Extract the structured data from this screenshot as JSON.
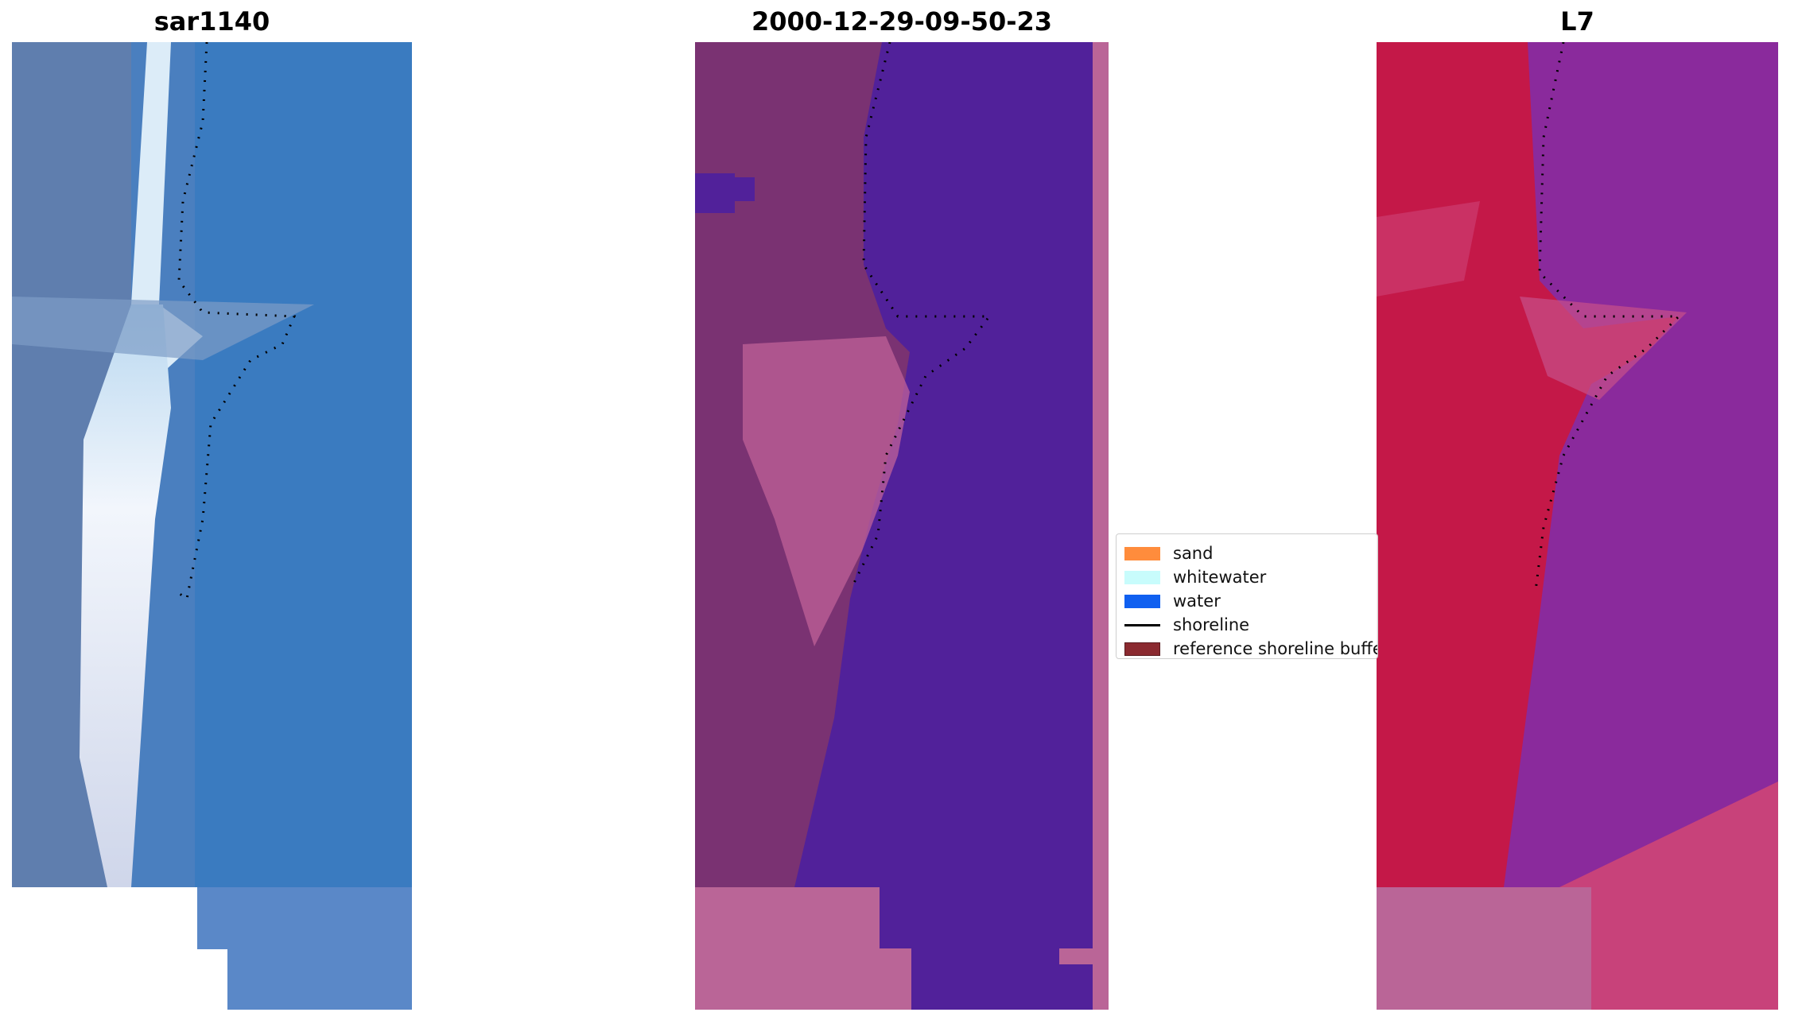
{
  "panels": [
    {
      "title": "sar1140"
    },
    {
      "title": "2000-12-29-09-50-23"
    },
    {
      "title": "L7"
    }
  ],
  "legend": {
    "items": [
      {
        "label": "sand",
        "color": "#ff8c3c",
        "kind": "patch"
      },
      {
        "label": "whitewater",
        "color": "#c8fcfc",
        "kind": "patch"
      },
      {
        "label": "water",
        "color": "#1060f0",
        "kind": "patch"
      },
      {
        "label": "shoreline",
        "color": "#000000",
        "kind": "line"
      },
      {
        "label": "reference shoreline buffer",
        "color": "#8b2a30",
        "kind": "patch"
      }
    ]
  },
  "colors": {
    "water_class": "#51219a",
    "land_dark": "#7a3272",
    "land_light": "#c06298",
    "nodata_pink": "#ba6597",
    "rgb_water": "#3a7bc0",
    "rgb_beach": "#e8eef8",
    "l7_red": "#c41848",
    "l7_purple": "#8a2a9c"
  }
}
